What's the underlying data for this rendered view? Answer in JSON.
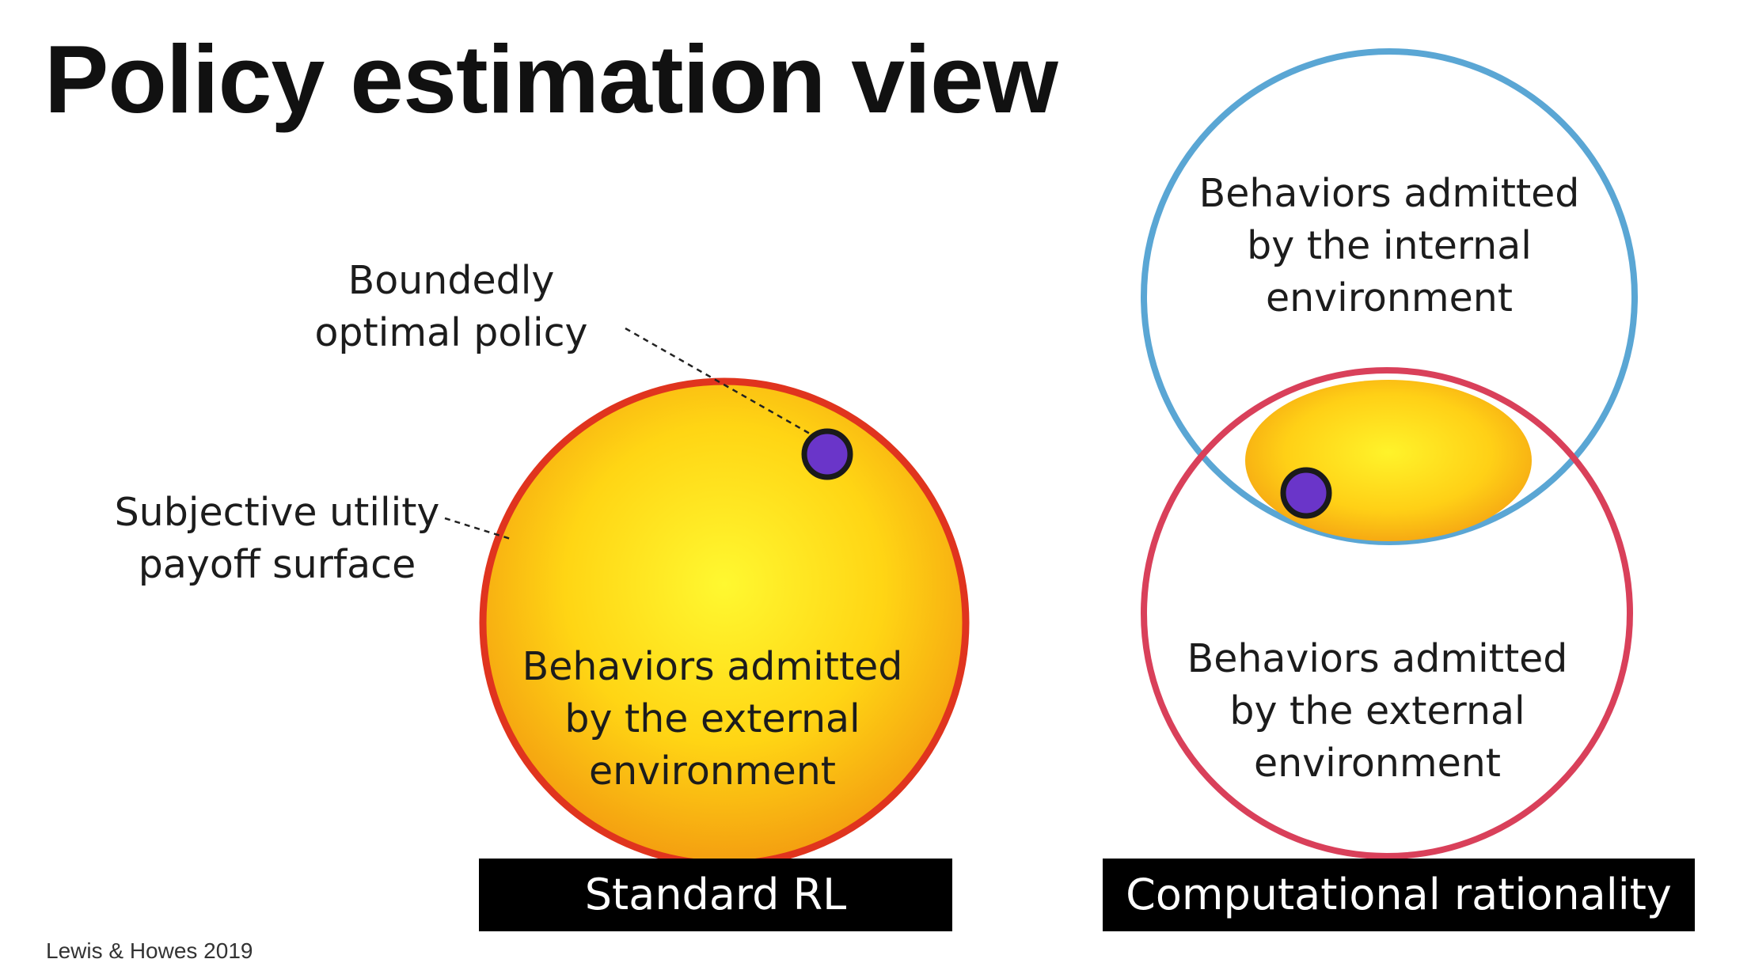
{
  "title": "Policy estimation view",
  "labels": {
    "bounded_policy": "Boundedly\noptimal policy",
    "subjective_utility": "Subjective utility\npayoff surface",
    "left_external": "Behaviors admitted\nby the external\nenvironment",
    "right_internal": "Behaviors admitted\nby the internal\nenvironment",
    "right_external": "Behaviors admitted\nby the external\nenvironment"
  },
  "bars": {
    "standard_rl": "Standard RL",
    "computational_rationality": "Computational rationality"
  },
  "citation": "Lewis & Howes 2019",
  "colors": {
    "external_env_ring": "#d9405a",
    "left_ring": "#e0341e",
    "internal_env_ring": "#5aa6d4",
    "utility_fill_light": "#ffef2a",
    "utility_fill_dark": "#f49a10",
    "policy_point": "#6a35c9",
    "bar_background": "#000000"
  }
}
